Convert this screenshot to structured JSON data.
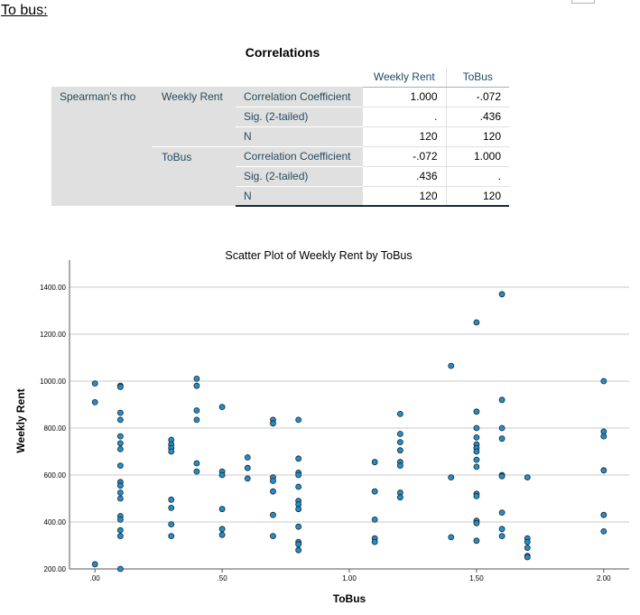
{
  "page": {
    "heading": "To bus:"
  },
  "table": {
    "title": "Correlations",
    "col_headers": [
      "Weekly Rent",
      "ToBus"
    ],
    "method": "Spearman's rho",
    "groups": [
      {
        "label": "Weekly Rent",
        "rows": [
          {
            "stat": "Correlation Coefficient",
            "values": [
              "1.000",
              "-.072"
            ]
          },
          {
            "stat": "Sig. (2-tailed)",
            "values": [
              ".",
              ".436"
            ]
          },
          {
            "stat": "N",
            "values": [
              "120",
              "120"
            ]
          }
        ]
      },
      {
        "label": "ToBus",
        "rows": [
          {
            "stat": "Correlation Coefficient",
            "values": [
              "-.072",
              "1.000"
            ]
          },
          {
            "stat": "Sig. (2-tailed)",
            "values": [
              ".436",
              "."
            ]
          },
          {
            "stat": "N",
            "values": [
              "120",
              "120"
            ]
          }
        ]
      }
    ]
  },
  "chart_data": {
    "type": "scatter",
    "title": "Scatter Plot of Weekly Rent by ToBus",
    "xlabel": "ToBus",
    "ylabel": "Weekly Rent",
    "xlim": [
      -0.1,
      2.1
    ],
    "ylim": [
      200,
      1500
    ],
    "xticks": [
      0,
      0.5,
      1.0,
      1.5,
      2.0
    ],
    "xtick_labels": [
      ".00",
      ".50",
      "1.00",
      "1.50",
      "2.00"
    ],
    "yticks": [
      200,
      400,
      600,
      800,
      1000,
      1200,
      1400
    ],
    "ytick_labels": [
      "200.00",
      "400.00",
      "600.00",
      "800.00",
      "1000.00",
      "1200.00",
      "1400.00"
    ],
    "grid": "horizontal",
    "marker_color": "#1f8fd0",
    "points": [
      [
        0,
        990
      ],
      [
        0,
        910
      ],
      [
        0,
        220
      ],
      [
        0.1,
        980
      ],
      [
        0.1,
        975
      ],
      [
        0.1,
        865
      ],
      [
        0.1,
        835
      ],
      [
        0.1,
        765
      ],
      [
        0.1,
        735
      ],
      [
        0.1,
        710
      ],
      [
        0.1,
        640
      ],
      [
        0.1,
        570
      ],
      [
        0.1,
        555
      ],
      [
        0.1,
        525
      ],
      [
        0.1,
        500
      ],
      [
        0.1,
        425
      ],
      [
        0.1,
        410
      ],
      [
        0.1,
        365
      ],
      [
        0.1,
        340
      ],
      [
        0.1,
        200
      ],
      [
        0.3,
        750
      ],
      [
        0.3,
        730
      ],
      [
        0.3,
        715
      ],
      [
        0.3,
        700
      ],
      [
        0.3,
        495
      ],
      [
        0.3,
        460
      ],
      [
        0.3,
        390
      ],
      [
        0.3,
        340
      ],
      [
        0.4,
        1010
      ],
      [
        0.4,
        980
      ],
      [
        0.4,
        875
      ],
      [
        0.4,
        835
      ],
      [
        0.4,
        650
      ],
      [
        0.4,
        615
      ],
      [
        0.5,
        890
      ],
      [
        0.5,
        615
      ],
      [
        0.5,
        600
      ],
      [
        0.5,
        455
      ],
      [
        0.5,
        370
      ],
      [
        0.5,
        345
      ],
      [
        0.6,
        675
      ],
      [
        0.6,
        630
      ],
      [
        0.6,
        585
      ],
      [
        0.7,
        835
      ],
      [
        0.7,
        820
      ],
      [
        0.7,
        590
      ],
      [
        0.7,
        575
      ],
      [
        0.7,
        530
      ],
      [
        0.7,
        430
      ],
      [
        0.7,
        340
      ],
      [
        0.8,
        835
      ],
      [
        0.8,
        670
      ],
      [
        0.8,
        610
      ],
      [
        0.8,
        600
      ],
      [
        0.8,
        550
      ],
      [
        0.8,
        490
      ],
      [
        0.8,
        475
      ],
      [
        0.8,
        455
      ],
      [
        0.8,
        380
      ],
      [
        0.8,
        315
      ],
      [
        0.8,
        305
      ],
      [
        0.8,
        280
      ],
      [
        1.1,
        655
      ],
      [
        1.1,
        530
      ],
      [
        1.1,
        410
      ],
      [
        1.1,
        330
      ],
      [
        1.1,
        315
      ],
      [
        1.2,
        860
      ],
      [
        1.2,
        775
      ],
      [
        1.2,
        740
      ],
      [
        1.2,
        705
      ],
      [
        1.2,
        655
      ],
      [
        1.2,
        640
      ],
      [
        1.2,
        525
      ],
      [
        1.2,
        505
      ],
      [
        1.4,
        1065
      ],
      [
        1.4,
        590
      ],
      [
        1.4,
        335
      ],
      [
        1.5,
        1250
      ],
      [
        1.5,
        870
      ],
      [
        1.5,
        800
      ],
      [
        1.5,
        760
      ],
      [
        1.5,
        730
      ],
      [
        1.5,
        715
      ],
      [
        1.5,
        700
      ],
      [
        1.5,
        665
      ],
      [
        1.5,
        635
      ],
      [
        1.5,
        520
      ],
      [
        1.5,
        510
      ],
      [
        1.5,
        405
      ],
      [
        1.5,
        395
      ],
      [
        1.5,
        320
      ],
      [
        1.6,
        1370
      ],
      [
        1.6,
        920
      ],
      [
        1.6,
        800
      ],
      [
        1.6,
        755
      ],
      [
        1.6,
        600
      ],
      [
        1.6,
        595
      ],
      [
        1.6,
        440
      ],
      [
        1.6,
        370
      ],
      [
        1.6,
        340
      ],
      [
        1.7,
        590
      ],
      [
        1.7,
        330
      ],
      [
        1.7,
        315
      ],
      [
        1.7,
        290
      ],
      [
        1.7,
        255
      ],
      [
        1.7,
        250
      ],
      [
        2.0,
        1000
      ],
      [
        2.0,
        785
      ],
      [
        2.0,
        765
      ],
      [
        2.0,
        620
      ],
      [
        2.0,
        430
      ],
      [
        2.0,
        360
      ]
    ]
  }
}
